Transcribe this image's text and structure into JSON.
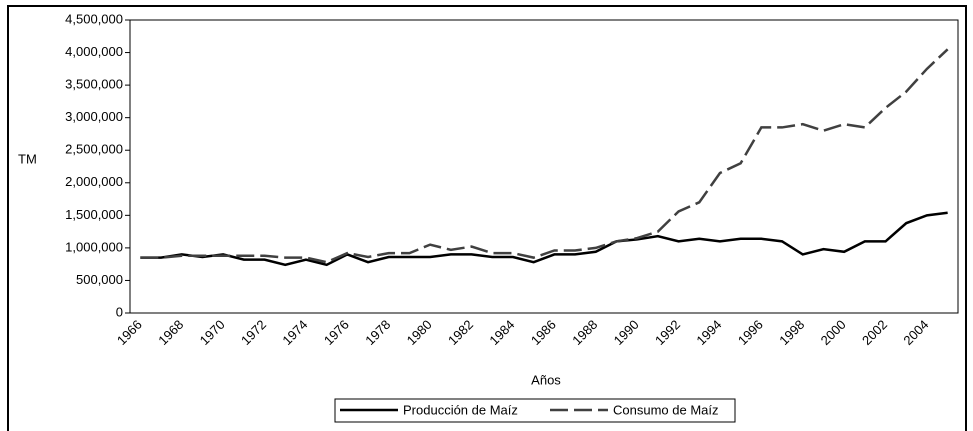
{
  "chart_data": {
    "type": "line",
    "x_label": "Años",
    "y_label": "TM",
    "categories": [
      "1966",
      null,
      "1968",
      null,
      "1970",
      null,
      "1972",
      null,
      "1974",
      null,
      "1976",
      null,
      "1978",
      null,
      "1980",
      null,
      "1982",
      null,
      "1984",
      null,
      "1986",
      null,
      "1988",
      null,
      "1990",
      null,
      "1992",
      null,
      "1994",
      null,
      "1996",
      null,
      "1998",
      null,
      "2000",
      null,
      "2002",
      null,
      "2004",
      null
    ],
    "series": [
      {
        "name": "Producción de Maíz",
        "color": "#000000",
        "dash": "solid",
        "values": [
          850000,
          850000,
          900000,
          860000,
          900000,
          820000,
          820000,
          740000,
          820000,
          740000,
          900000,
          780000,
          860000,
          860000,
          860000,
          900000,
          900000,
          860000,
          860000,
          780000,
          900000,
          900000,
          940000,
          1100000,
          1130000,
          1180000,
          1100000,
          1140000,
          1100000,
          1140000,
          1140000,
          1100000,
          900000,
          980000,
          940000,
          1100000,
          1100000,
          1380000,
          1500000,
          1540000
        ]
      },
      {
        "name": "Consumo de Maíz",
        "color": "#404040",
        "dash": "dashed",
        "values": [
          850000,
          850000,
          880000,
          880000,
          880000,
          880000,
          880000,
          850000,
          850000,
          780000,
          920000,
          860000,
          920000,
          920000,
          1050000,
          970000,
          1020000,
          920000,
          920000,
          850000,
          960000,
          960000,
          1000000,
          1100000,
          1150000,
          1250000,
          1560000,
          1700000,
          2150000,
          2300000,
          2850000,
          2850000,
          2900000,
          2800000,
          2900000,
          2850000,
          3150000,
          3400000,
          3750000,
          4050000
        ]
      }
    ],
    "ylim": [
      0,
      4500000
    ],
    "yticks": [
      0,
      {
        "value": 500000,
        "label": "500,000"
      },
      {
        "value": 1000000,
        "label": "1,000,000"
      },
      {
        "value": 1500000,
        "label": "1,500,000"
      },
      {
        "value": 2000000,
        "label": "2,000,000"
      },
      {
        "value": 2500000,
        "label": "2,500,000"
      },
      {
        "value": 3000000,
        "label": "3,000,000"
      },
      {
        "value": 3500000,
        "label": "3,500,000"
      },
      {
        "value": 4000000,
        "label": "4,000,000"
      },
      {
        "value": 4500000,
        "label": "4,500,000"
      }
    ],
    "legend": "bottom"
  }
}
